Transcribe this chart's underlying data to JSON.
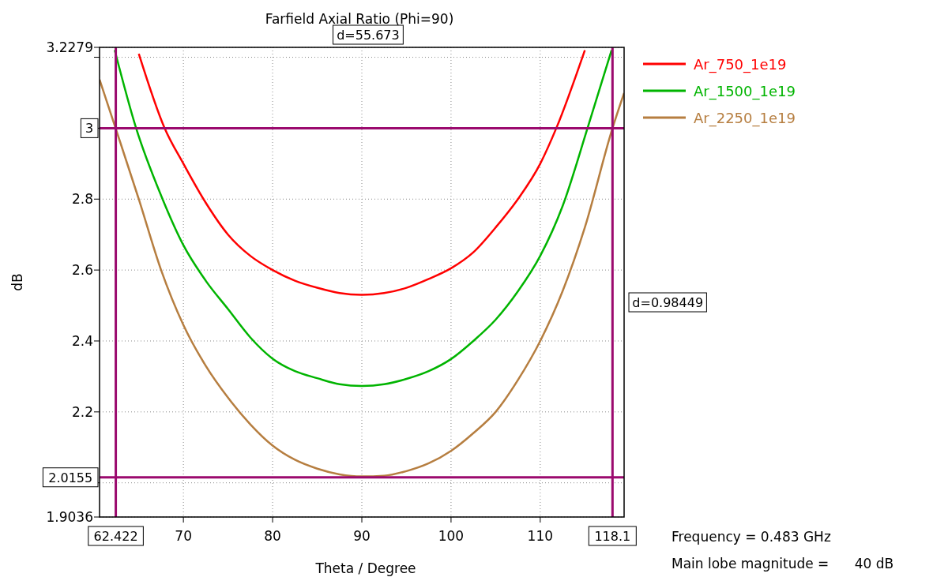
{
  "chart_data": {
    "type": "line",
    "title": "Farfield  Axial Ratio (Phi=90)",
    "xlabel": "Theta / Degree",
    "ylabel": "dB",
    "xlim": [
      60.6,
      119.4
    ],
    "xticks": [
      70,
      80,
      90,
      100,
      110
    ],
    "ylim": [
      1.9036,
      3.2279
    ],
    "yticks": [
      1.9036,
      {
        "value": 2,
        "label": null
      },
      2.2,
      2.4,
      2.6,
      2.8,
      {
        "value": 3,
        "label": null
      },
      {
        "value": 3.2,
        "label": null
      },
      3.2279
    ],
    "grid": true,
    "legend": "right",
    "line_style": "solid",
    "marker": "none",
    "series": [
      {
        "name": "Ar_750_1e19",
        "color": "#ff0000",
        "x": [
          65,
          67.9,
          70,
          72.5,
          75,
          77.5,
          80,
          82.5,
          85,
          87.5,
          90,
          92.5,
          95,
          97.5,
          100,
          102.5,
          105,
          107.5,
          110,
          111.8,
          115
        ],
        "values": [
          3.21,
          3.0,
          2.9,
          2.79,
          2.7,
          2.64,
          2.6,
          2.57,
          2.55,
          2.535,
          2.53,
          2.535,
          2.55,
          2.575,
          2.605,
          2.65,
          2.72,
          2.8,
          2.9,
          3.0,
          3.22
        ]
      },
      {
        "name": "Ar_1500_1e19",
        "color": "#00b400",
        "x": [
          62.3,
          64.7,
          67.5,
          70,
          72.5,
          75,
          77.5,
          80,
          82.5,
          85,
          87.5,
          90,
          92.5,
          95,
          97.5,
          100,
          102.5,
          105,
          107.5,
          110,
          112.5,
          115.3,
          118
        ],
        "values": [
          3.22,
          3.0,
          2.81,
          2.67,
          2.57,
          2.49,
          2.41,
          2.35,
          2.315,
          2.295,
          2.278,
          2.273,
          2.278,
          2.293,
          2.315,
          2.349,
          2.4,
          2.46,
          2.54,
          2.64,
          2.78,
          3.0,
          3.22
        ]
      },
      {
        "name": "Ar_2250_1e19",
        "color": "#b67e40",
        "x": [
          60.6,
          62.4,
          65,
          67.5,
          70,
          72.5,
          75,
          77.5,
          80,
          82.5,
          85,
          87.5,
          90,
          92.5,
          95,
          97.5,
          100,
          102.5,
          105,
          107.5,
          110,
          112.5,
          115,
          118.1,
          119.4
        ],
        "values": [
          3.137,
          3.0,
          2.8,
          2.6,
          2.445,
          2.33,
          2.24,
          2.165,
          2.105,
          2.065,
          2.04,
          2.024,
          2.018,
          2.02,
          2.033,
          2.055,
          2.09,
          2.14,
          2.2,
          2.29,
          2.4,
          2.54,
          2.72,
          3.0,
          3.099
        ]
      }
    ],
    "ref_lines": [
      {
        "axis": "y",
        "value": 3,
        "label": "3",
        "color": "#9b0a6e"
      },
      {
        "axis": "y",
        "value": 2.0155,
        "label": "2.0155",
        "color": "#9b0a6e"
      },
      {
        "axis": "x",
        "value": 62.422,
        "label": "62.422",
        "color": "#9b0a6e"
      },
      {
        "axis": "x",
        "value": 118.1,
        "label": "118.1",
        "color": "#9b0a6e"
      }
    ],
    "annotations": [
      "d=55.673",
      "d=0.98449",
      "Frequency = 0.483 GHz",
      "Main lobe magnitude =      40 dB"
    ]
  }
}
